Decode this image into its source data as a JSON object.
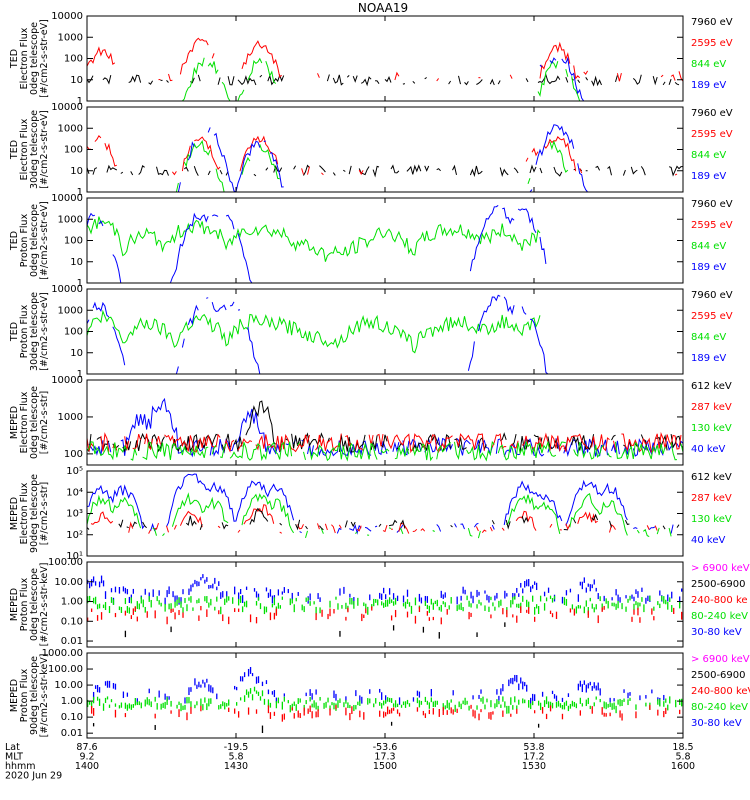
{
  "title": "NOAA19",
  "colors": {
    "black": "#000000",
    "red": "#ff0000",
    "green": "#00e000",
    "blue": "#0000ff",
    "magenta": "#ff00ff"
  },
  "chart_data": [
    {
      "type": "line",
      "scale": "log",
      "ylabel": [
        "TED",
        "Electron Flux",
        "0deg telescope",
        "[#/cm2-s-str-eV]"
      ],
      "ylim": [
        1,
        10000
      ],
      "yticks": [
        "1",
        "10",
        "100",
        "1000",
        "10000"
      ],
      "legend": [
        {
          "label": "7960 eV",
          "color": "black"
        },
        {
          "label": "2595 eV",
          "color": "red"
        },
        {
          "label": "844 eV",
          "color": "green"
        },
        {
          "label": "189 eV",
          "color": "blue"
        }
      ],
      "series": [
        {
          "color": "black",
          "baseline": 10,
          "activity": 0.55
        },
        {
          "color": "red",
          "peaks": [
            [
              14.05,
              200
            ],
            [
              14.38,
              600
            ],
            [
              14.58,
              500
            ],
            [
              15.58,
              300
            ]
          ],
          "baseline": 15,
          "activity": 0.25
        },
        {
          "color": "green",
          "peaks": [
            [
              14.4,
              80
            ],
            [
              14.58,
              60
            ],
            [
              15.58,
              60
            ]
          ],
          "baseline": 0,
          "activity": 0.08
        },
        {
          "color": "blue",
          "peaks": [
            [
              15.58,
              150
            ],
            [
              15.53,
              60
            ]
          ],
          "baseline": 0,
          "activity": 0.05
        }
      ]
    },
    {
      "type": "line",
      "scale": "log",
      "ylabel": [
        "TED",
        "Electron Flux",
        "30deg telescope",
        "[#/cm2-s-str-eV]"
      ],
      "ylim": [
        1,
        10000
      ],
      "yticks": [
        "1",
        "10",
        "100",
        "1000",
        "10000"
      ],
      "legend": [
        {
          "label": "7960 eV",
          "color": "black"
        },
        {
          "label": "2595 eV",
          "color": "red"
        },
        {
          "label": "844 eV",
          "color": "green"
        },
        {
          "label": "189 eV",
          "color": "blue"
        }
      ],
      "series": [
        {
          "color": "black",
          "baseline": 10,
          "activity": 0.6
        },
        {
          "color": "red",
          "peaks": [
            [
              14.04,
              300
            ],
            [
              14.38,
              300
            ],
            [
              14.58,
              300
            ],
            [
              15.52,
              100
            ],
            [
              15.58,
              300
            ]
          ],
          "baseline": 10,
          "activity": 0.2
        },
        {
          "color": "green",
          "peaks": [
            [
              14.38,
              150
            ],
            [
              14.58,
              100
            ],
            [
              15.55,
              200
            ]
          ],
          "baseline": 0,
          "activity": 0.1
        },
        {
          "color": "blue",
          "peaks": [
            [
              14.4,
              800
            ],
            [
              14.58,
              200
            ],
            [
              15.58,
              1000
            ]
          ],
          "baseline": 0,
          "activity": 0.08
        }
      ]
    },
    {
      "type": "line",
      "scale": "log",
      "ylabel": [
        "TED",
        "Proton Flux",
        "0deg telescope",
        "[#/cm2-s-str-eV]"
      ],
      "ylim": [
        1,
        10000
      ],
      "yticks": [
        "1",
        "10",
        "100",
        "1000",
        "10000"
      ],
      "legend": [
        {
          "label": "7960 eV",
          "color": "black"
        },
        {
          "label": "2595 eV",
          "color": "red"
        },
        {
          "label": "844 eV",
          "color": "green"
        },
        {
          "label": "189 eV",
          "color": "blue"
        }
      ],
      "series": [
        {
          "color": "green",
          "profile": [
            [
              14.0,
              300
            ],
            [
              14.05,
              800
            ],
            [
              14.12,
              30
            ],
            [
              14.2,
              200
            ],
            [
              14.27,
              30
            ],
            [
              14.35,
              500
            ],
            [
              14.42,
              300
            ],
            [
              14.47,
              30
            ],
            [
              14.55,
              400
            ],
            [
              14.62,
              300
            ],
            [
              14.7,
              80
            ],
            [
              14.8,
              20
            ],
            [
              14.88,
              30
            ],
            [
              14.95,
              100
            ],
            [
              15.0,
              300
            ],
            [
              15.05,
              100
            ],
            [
              15.1,
              30
            ],
            [
              15.2,
              300
            ],
            [
              15.25,
              300
            ],
            [
              15.33,
              100
            ],
            [
              15.4,
              300
            ],
            [
              15.45,
              50
            ],
            [
              15.52,
              200
            ]
          ],
          "noise": 0.35
        },
        {
          "color": "blue",
          "peaks": [
            [
              14.02,
              1200
            ],
            [
              14.38,
              1500
            ],
            [
              14.45,
              2500
            ],
            [
              15.38,
              3500
            ],
            [
              15.46,
              2000
            ]
          ],
          "baseline": 0,
          "activity": 0.15
        }
      ]
    },
    {
      "type": "line",
      "scale": "log",
      "ylabel": [
        "TED",
        "Proton Flux",
        "30deg telescope",
        "[#/cm2-s-str-eV]"
      ],
      "ylim": [
        1,
        10000
      ],
      "yticks": [
        "1",
        "10",
        "100",
        "1000",
        "10000"
      ],
      "legend": [
        {
          "label": "7960 eV",
          "color": "black"
        },
        {
          "label": "2595 eV",
          "color": "red"
        },
        {
          "label": "844 eV",
          "color": "green"
        },
        {
          "label": "189 eV",
          "color": "blue"
        }
      ],
      "series": [
        {
          "color": "green",
          "profile": [
            [
              14.0,
              100
            ],
            [
              14.05,
              500
            ],
            [
              14.12,
              20
            ],
            [
              14.2,
              300
            ],
            [
              14.3,
              10
            ],
            [
              14.38,
              500
            ],
            [
              14.42,
              200
            ],
            [
              14.47,
              20
            ],
            [
              14.55,
              300
            ],
            [
              14.65,
              200
            ],
            [
              14.75,
              60
            ],
            [
              14.85,
              30
            ],
            [
              14.95,
              300
            ],
            [
              15.05,
              60
            ],
            [
              15.1,
              20
            ],
            [
              15.2,
              200
            ],
            [
              15.25,
              300
            ],
            [
              15.33,
              100
            ],
            [
              15.4,
              300
            ],
            [
              15.45,
              50
            ],
            [
              15.52,
              300
            ]
          ],
          "noise": 0.35
        },
        {
          "color": "blue",
          "peaks": [
            [
              14.04,
              1500
            ],
            [
              14.4,
              2500
            ],
            [
              14.48,
              2000
            ],
            [
              15.38,
              4000
            ],
            [
              15.45,
              1500
            ]
          ],
          "baseline": 0,
          "activity": 0.12
        }
      ]
    },
    {
      "type": "line",
      "scale": "log",
      "ylabel": [
        "MEPED",
        "Electron Flux",
        "0deg telescope",
        "[#/cm2-s-str]"
      ],
      "ylim": [
        50,
        10000
      ],
      "yticks": [
        "100",
        "1000",
        "10000"
      ],
      "legend": [
        {
          "label": "612 keV",
          "color": "black"
        },
        {
          "label": "287 keV",
          "color": "red"
        },
        {
          "label": "130 keV",
          "color": "green"
        },
        {
          "label": "40 keV",
          "color": "blue"
        }
      ],
      "series": [
        {
          "color": "blue",
          "peaks": [
            [
              14.18,
              1000
            ],
            [
              14.25,
              2500
            ],
            [
              14.55,
              1000
            ]
          ],
          "baseline": 150,
          "activity": 0.9
        },
        {
          "color": "black",
          "peaks": [
            [
              14.58,
              2000
            ]
          ],
          "baseline": 200,
          "activity": 0.8
        },
        {
          "color": "red",
          "baseline": 200,
          "activity": 0.9
        },
        {
          "color": "green",
          "baseline": 120,
          "activity": 0.9
        }
      ]
    },
    {
      "type": "line",
      "scale": "log",
      "ylabel": [
        "MEPED",
        "Electron Flux",
        "90deg telescope",
        "[#/cm2-s-str]"
      ],
      "ylim": [
        10,
        100000
      ],
      "yticks": [
        "10¹",
        "10²",
        "10³",
        "10⁴",
        "10⁵"
      ],
      "legend": [
        {
          "label": "612 keV",
          "color": "black"
        },
        {
          "label": "287 keV",
          "color": "red"
        },
        {
          "label": "130 keV",
          "color": "green"
        },
        {
          "label": "40 keV",
          "color": "blue"
        }
      ],
      "series": [
        {
          "color": "blue",
          "peaks": [
            [
              14.05,
              12000
            ],
            [
              14.12,
              12000
            ],
            [
              14.35,
              60000
            ],
            [
              14.43,
              20000
            ],
            [
              14.57,
              30000
            ],
            [
              14.63,
              15000
            ],
            [
              15.47,
              20000
            ],
            [
              15.53,
              8000
            ],
            [
              15.68,
              25000
            ],
            [
              15.75,
              15000
            ]
          ],
          "baseline": 200,
          "activity": 0.5
        },
        {
          "color": "green",
          "peaks": [
            [
              14.05,
              4000
            ],
            [
              14.12,
              4000
            ],
            [
              14.35,
              5000
            ],
            [
              14.42,
              3000
            ],
            [
              14.58,
              6000
            ],
            [
              14.63,
              3000
            ],
            [
              15.47,
              5000
            ],
            [
              15.53,
              2500
            ],
            [
              15.68,
              5000
            ],
            [
              15.75,
              3000
            ]
          ],
          "baseline": 120,
          "activity": 0.3
        },
        {
          "color": "red",
          "peaks": [
            [
              14.05,
              800
            ],
            [
              14.35,
              1000
            ],
            [
              14.58,
              2000
            ],
            [
              15.47,
              800
            ],
            [
              15.68,
              800
            ]
          ],
          "baseline": 200,
          "activity": 0.4
        },
        {
          "color": "black",
          "peaks": [
            [
              14.35,
              500
            ],
            [
              14.58,
              1000
            ],
            [
              15.47,
              500
            ],
            [
              15.7,
              500
            ]
          ],
          "baseline": 300,
          "activity": 0.35
        }
      ]
    },
    {
      "type": "scatter",
      "scale": "log",
      "ylabel": [
        "MEPED",
        "Proton Flux",
        "0deg telescope",
        "[#/cm2-s-str-keV]"
      ],
      "ylim": [
        0.005,
        100
      ],
      "yticks": [
        "0.01",
        "0.10",
        "1.00",
        "10.00",
        "100.00"
      ],
      "legend": [
        {
          "label": "> 6900 keV",
          "color": "magenta"
        },
        {
          "label": "2500-6900",
          "color": "black"
        },
        {
          "label": "240-800 ke",
          "color": "red"
        },
        {
          "label": "80-240 keV",
          "color": "green"
        },
        {
          "label": "30-80 keV",
          "color": "blue"
        }
      ],
      "series": [
        {
          "color": "blue",
          "peaks": [
            [
              14.02,
              20
            ],
            [
              14.38,
              20
            ],
            [
              14.42,
              10
            ],
            [
              15.48,
              10
            ],
            [
              15.68,
              10
            ]
          ],
          "baseline": 3,
          "activity": 0.45
        },
        {
          "color": "green",
          "baseline": 1,
          "activity": 0.7
        },
        {
          "color": "red",
          "baseline": 0.3,
          "activity": 0.25
        },
        {
          "color": "black",
          "baseline": 0.05,
          "activity": 0.03
        }
      ]
    },
    {
      "type": "scatter",
      "scale": "log",
      "ylabel": [
        "MEPED",
        "Proton Flux",
        "90deg telescope",
        "[#/cm2-s-str-keV]"
      ],
      "ylim": [
        0.005,
        1000
      ],
      "yticks": [
        "0.01",
        "0.10",
        "1.00",
        "10.00",
        "100.00",
        "1000.00"
      ],
      "legend": [
        {
          "label": "> 6900 keV",
          "color": "magenta"
        },
        {
          "label": "2500-6900",
          "color": "black"
        },
        {
          "label": "240-800 keV",
          "color": "red"
        },
        {
          "label": "80-240 keV",
          "color": "green"
        },
        {
          "label": "30-80 keV",
          "color": "blue"
        }
      ],
      "series": [
        {
          "color": "blue",
          "peaks": [
            [
              14.06,
              20
            ],
            [
              14.38,
              20
            ],
            [
              14.55,
              80
            ],
            [
              15.43,
              30
            ],
            [
              15.68,
              20
            ]
          ],
          "baseline": 3,
          "activity": 0.3
        },
        {
          "color": "green",
          "peaks": [
            [
              14.56,
              5
            ]
          ],
          "baseline": 1,
          "activity": 0.7
        },
        {
          "color": "red",
          "peaks": [
            [
              14.58,
              0.3
            ]
          ],
          "baseline": 0.3,
          "activity": 0.3
        },
        {
          "color": "black",
          "baseline": 0.05,
          "activity": 0.02
        }
      ]
    }
  ],
  "xaxis": {
    "range": [
      14.0,
      16.0
    ],
    "row_labels": [
      "Lat",
      "MLT",
      "hhmm"
    ],
    "ticks": [
      {
        "value": 14.0,
        "lat": "87.6",
        "mlt": "9.2",
        "hhmm": "1400"
      },
      {
        "value": 14.5,
        "lat": "-19.5",
        "mlt": "5.8",
        "hhmm": "1430"
      },
      {
        "value": 15.0,
        "lat": "-53.6",
        "mlt": "17.3",
        "hhmm": "1500"
      },
      {
        "value": 15.5,
        "lat": "53.8",
        "mlt": "17.2",
        "hhmm": "1530"
      },
      {
        "value": 16.0,
        "lat": "18.5",
        "mlt": "5.8",
        "hhmm": "1600"
      }
    ],
    "date": "2020 Jun 29"
  }
}
